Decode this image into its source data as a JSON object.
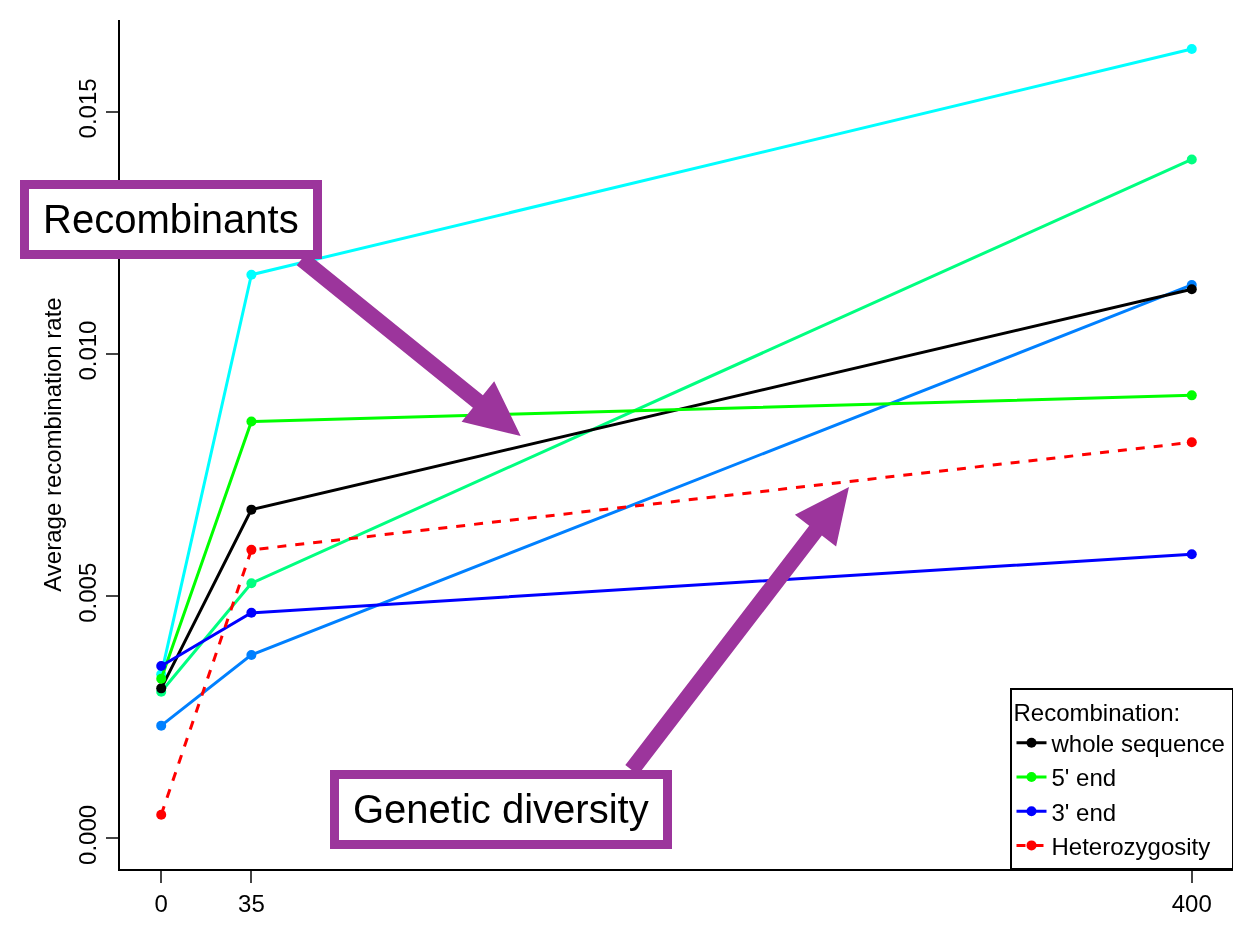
{
  "chart_data": {
    "type": "line",
    "ylabel": "Average recombination rate",
    "legend_title": "Recombination:",
    "x": [
      0,
      35,
      400
    ],
    "series": [
      {
        "color": "#00ffff",
        "values": [
          0.00339,
          0.01164,
          0.0163
        ]
      },
      {
        "color": "#00ff80",
        "values": [
          0.00303,
          0.00527,
          0.01402
        ]
      },
      {
        "color": "#0080ff",
        "values": [
          0.00233,
          0.00379,
          0.01143
        ]
      },
      {
        "name": "whole sequence",
        "color": "#000000",
        "values": [
          0.0031,
          0.00679,
          0.01134
        ]
      },
      {
        "name": "5' end",
        "color": "#00ff00",
        "values": [
          0.0033,
          0.00861,
          0.00915
        ]
      },
      {
        "name": "3' end",
        "color": "#0000ff",
        "values": [
          0.00356,
          0.00466,
          0.00587
        ]
      },
      {
        "name": "Heterozygosity",
        "color": "#ff0000",
        "line_style": "dashed",
        "values": [
          0.00049,
          0.00596,
          0.00818
        ]
      }
    ],
    "xlim": [
      -16,
      416
    ],
    "xticks": [
      0,
      35,
      400
    ],
    "ylim": [
      -0.00063,
      0.0169
    ],
    "yticks": [
      {
        "value": 0,
        "label": "0.000"
      },
      {
        "value": 0.005,
        "label": "0.005"
      },
      {
        "value": 0.01,
        "label": "0.010"
      },
      {
        "value": 0.015,
        "label": "0.015"
      }
    ],
    "grid": false,
    "legend": "bottom right",
    "marker": "circle",
    "line_style": "solid",
    "annotations": [
      "Recombinants",
      "Genetic diversity"
    ]
  }
}
